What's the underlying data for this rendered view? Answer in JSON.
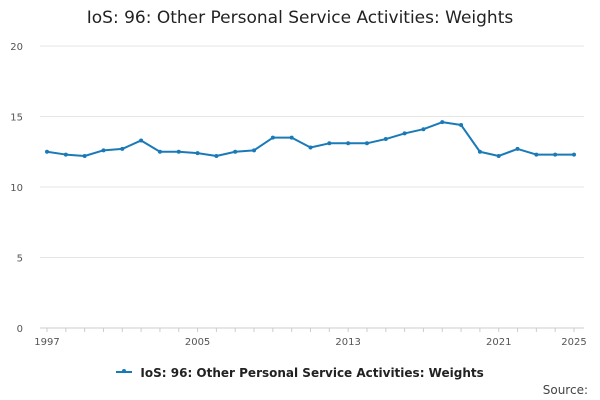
{
  "chart_data": {
    "type": "line",
    "title": "IoS: 96: Other Personal Service Activities: Weights",
    "xlabel": "",
    "ylabel": "",
    "xlim": [
      1997,
      2025
    ],
    "ylim": [
      0,
      20
    ],
    "yticks": [
      0,
      5,
      10,
      15,
      20
    ],
    "xticks": [
      1997,
      2005,
      2013,
      2021,
      2025
    ],
    "series": [
      {
        "name": "IoS: 96: Other Personal Service Activities: Weights",
        "color": "#1a7ab8",
        "x": [
          1997,
          1998,
          1999,
          2000,
          2001,
          2002,
          2003,
          2004,
          2005,
          2006,
          2007,
          2008,
          2009,
          2010,
          2011,
          2012,
          2013,
          2014,
          2015,
          2016,
          2017,
          2018,
          2019,
          2020,
          2021,
          2022,
          2023,
          2024,
          2025
        ],
        "y": [
          12.5,
          12.3,
          12.2,
          12.6,
          12.7,
          13.3,
          12.5,
          12.5,
          12.4,
          12.2,
          12.5,
          12.6,
          13.5,
          13.5,
          12.8,
          13.1,
          13.1,
          13.1,
          13.4,
          13.8,
          14.1,
          14.6,
          14.4,
          12.5,
          12.2,
          12.7,
          12.3,
          12.3,
          12.3
        ]
      }
    ],
    "legend_position": "bottom",
    "source_label": "Source:"
  }
}
